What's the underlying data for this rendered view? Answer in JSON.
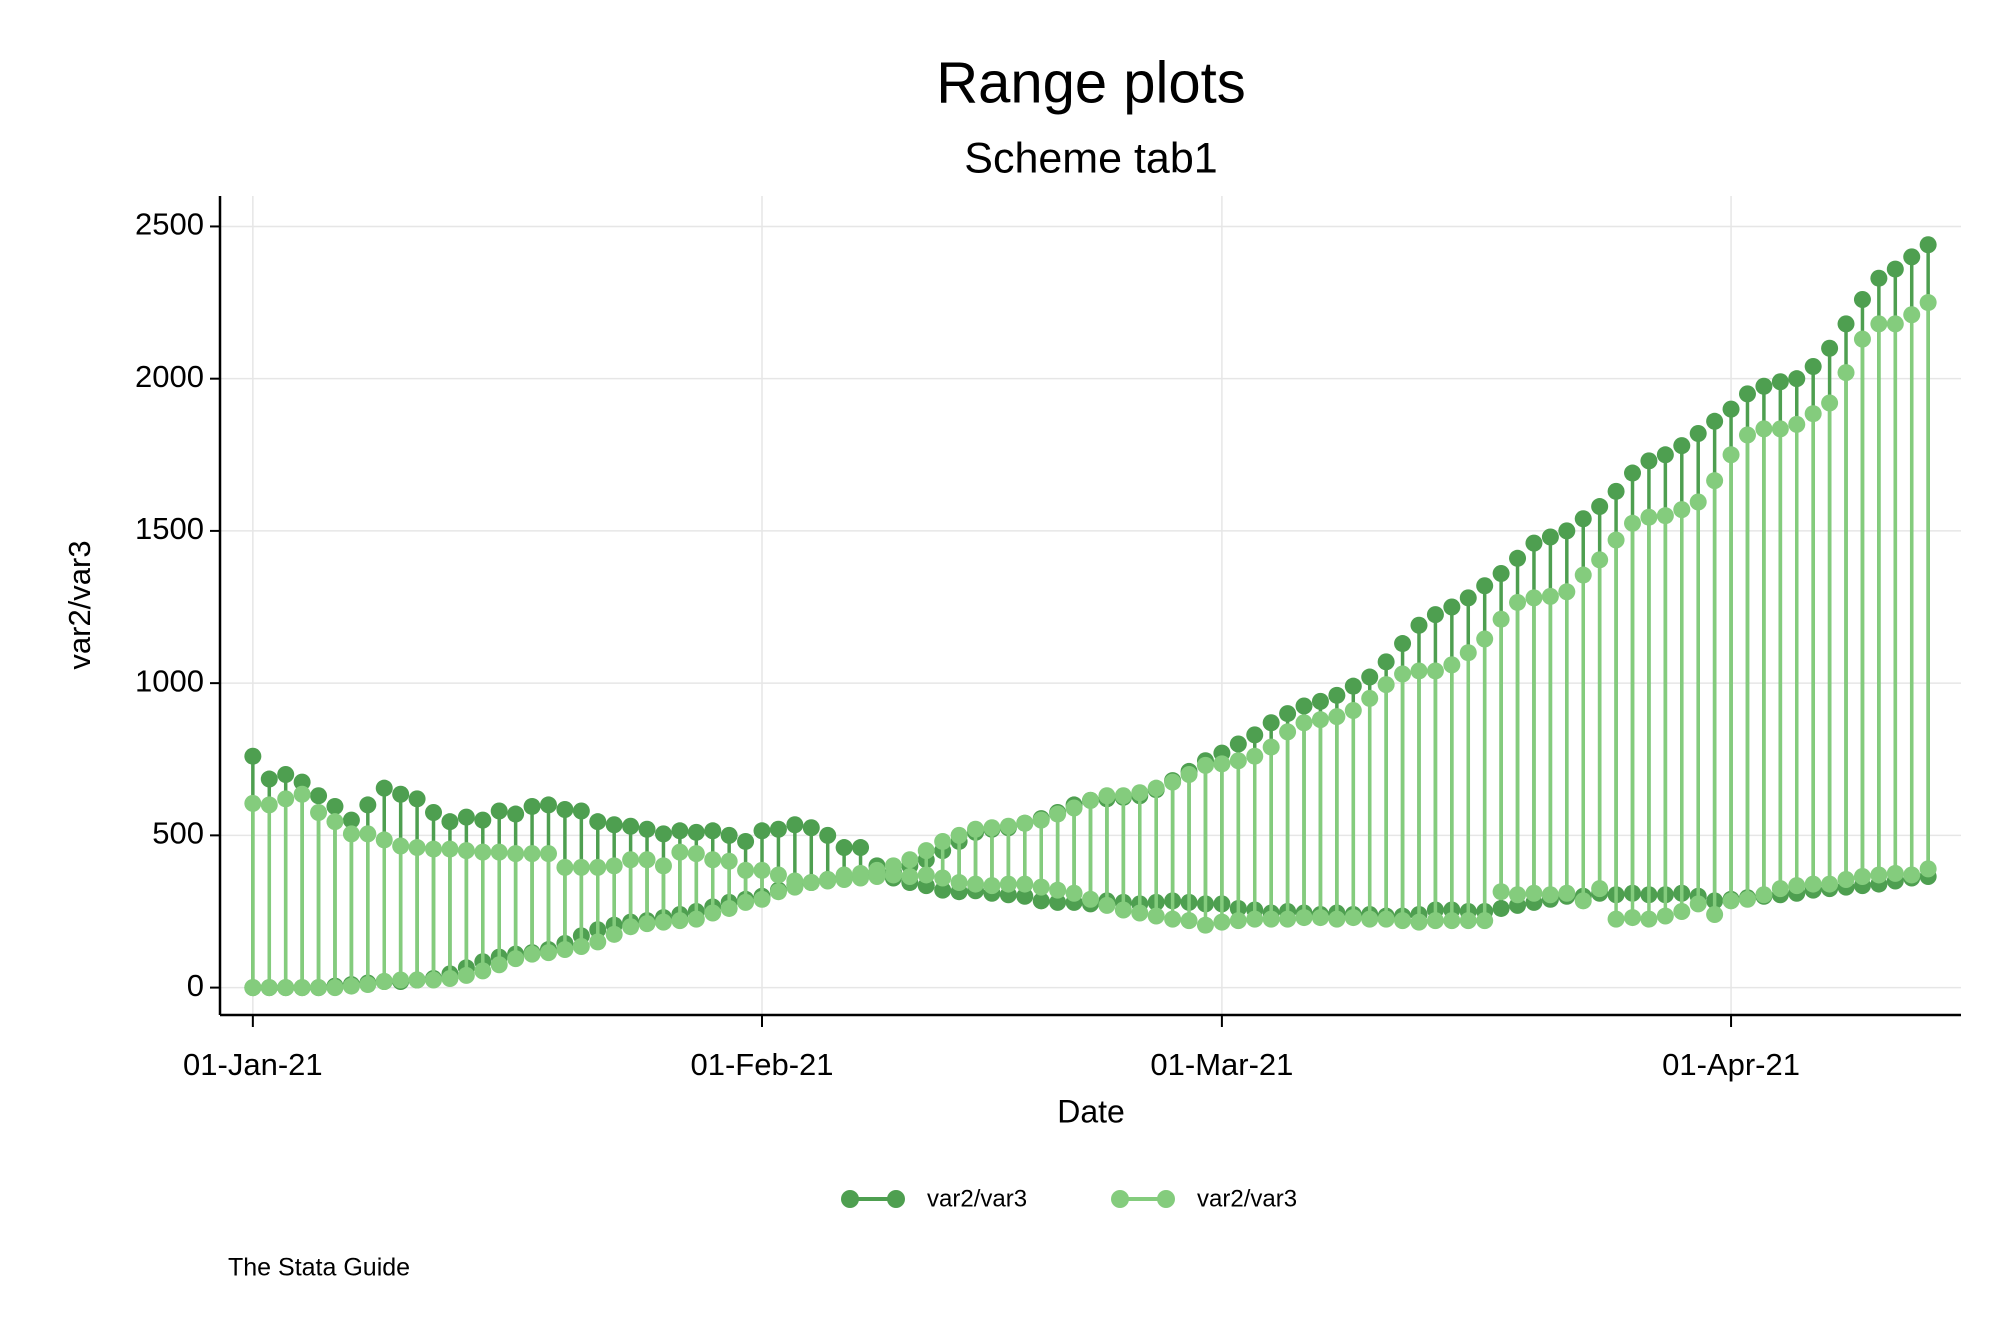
{
  "chart_data": {
    "type": "range",
    "title": "Range plots",
    "subtitle": "Scheme tab1",
    "x_label": "Date",
    "y_label": "var2/var3",
    "caption": "The Stata Guide",
    "grid": true,
    "x": [
      "2021-01-01",
      "2021-01-02",
      "2021-01-03",
      "2021-01-04",
      "2021-01-05",
      "2021-01-06",
      "2021-01-07",
      "2021-01-08",
      "2021-01-09",
      "2021-01-10",
      "2021-01-11",
      "2021-01-12",
      "2021-01-13",
      "2021-01-14",
      "2021-01-15",
      "2021-01-16",
      "2021-01-17",
      "2021-01-18",
      "2021-01-19",
      "2021-01-20",
      "2021-01-21",
      "2021-01-22",
      "2021-01-23",
      "2021-01-24",
      "2021-01-25",
      "2021-01-26",
      "2021-01-27",
      "2021-01-28",
      "2021-01-29",
      "2021-01-30",
      "2021-01-31",
      "2021-02-01",
      "2021-02-02",
      "2021-02-03",
      "2021-02-04",
      "2021-02-05",
      "2021-02-06",
      "2021-02-07",
      "2021-02-08",
      "2021-02-09",
      "2021-02-10",
      "2021-02-11",
      "2021-02-12",
      "2021-02-13",
      "2021-02-14",
      "2021-02-15",
      "2021-02-16",
      "2021-02-17",
      "2021-02-18",
      "2021-02-19",
      "2021-02-20",
      "2021-02-21",
      "2021-02-22",
      "2021-02-23",
      "2021-02-24",
      "2021-02-25",
      "2021-02-26",
      "2021-02-27",
      "2021-02-28",
      "2021-03-01",
      "2021-03-02",
      "2021-03-03",
      "2021-03-04",
      "2021-03-05",
      "2021-03-06",
      "2021-03-07",
      "2021-03-08",
      "2021-03-09",
      "2021-03-10",
      "2021-03-11",
      "2021-03-12",
      "2021-03-13",
      "2021-03-14",
      "2021-03-15",
      "2021-03-16",
      "2021-03-17",
      "2021-03-18",
      "2021-03-19",
      "2021-03-20",
      "2021-03-21",
      "2021-03-22",
      "2021-03-23",
      "2021-03-24",
      "2021-03-25",
      "2021-03-26",
      "2021-03-27",
      "2021-03-28",
      "2021-03-29",
      "2021-03-30",
      "2021-03-31",
      "2021-04-01",
      "2021-04-02",
      "2021-04-03",
      "2021-04-04",
      "2021-04-05",
      "2021-04-06",
      "2021-04-07",
      "2021-04-08",
      "2021-04-09",
      "2021-04-10",
      "2021-04-11",
      "2021-04-12",
      "2021-04-13"
    ],
    "series": [
      {
        "name": "var2/var3",
        "color": "#4e9f50",
        "y_from": [
          760,
          685,
          700,
          675,
          630,
          595,
          550,
          600,
          655,
          635,
          620,
          575,
          545,
          560,
          550,
          580,
          570,
          595,
          600,
          585,
          580,
          545,
          535,
          530,
          520,
          505,
          515,
          510,
          515,
          500,
          480,
          515,
          520,
          535,
          525,
          500,
          460,
          460,
          400,
          360,
          345,
          335,
          320,
          315,
          318,
          310,
          305,
          300,
          285,
          280,
          280,
          275,
          285,
          280,
          275,
          280,
          285,
          280,
          275,
          275,
          260,
          255,
          245,
          250,
          245,
          240,
          245,
          240,
          240,
          235,
          235,
          240,
          255,
          255,
          250,
          250,
          260,
          270,
          280,
          290,
          300,
          300,
          310,
          305,
          310,
          305,
          305,
          310,
          300,
          285,
          290,
          295,
          300,
          305,
          310,
          320,
          325,
          330,
          335,
          340,
          350,
          360,
          365
        ],
        "y_to": [
          0,
          0,
          0,
          0,
          0,
          5,
          10,
          15,
          20,
          20,
          25,
          30,
          45,
          65,
          85,
          100,
          110,
          115,
          125,
          145,
          170,
          190,
          205,
          215,
          220,
          230,
          240,
          250,
          265,
          280,
          290,
          300,
          320,
          335,
          345,
          355,
          365,
          370,
          375,
          380,
          400,
          420,
          450,
          480,
          510,
          520,
          525,
          540,
          555,
          575,
          600,
          615,
          620,
          625,
          630,
          650,
          680,
          710,
          745,
          770,
          800,
          830,
          870,
          900,
          925,
          940,
          960,
          990,
          1020,
          1070,
          1130,
          1190,
          1225,
          1250,
          1280,
          1320,
          1360,
          1410,
          1460,
          1480,
          1500,
          1540,
          1580,
          1630,
          1690,
          1730,
          1750,
          1780,
          1820,
          1860,
          1900,
          1950,
          1975,
          1990,
          2000,
          2040,
          2100,
          2180,
          2260,
          2330,
          2360,
          2400,
          2440
        ]
      },
      {
        "name": "var2/var3",
        "color": "#84cc7d",
        "y_from": [
          605,
          600,
          620,
          635,
          575,
          545,
          505,
          505,
          485,
          465,
          460,
          455,
          455,
          450,
          445,
          445,
          440,
          440,
          440,
          395,
          395,
          395,
          400,
          420,
          420,
          400,
          445,
          440,
          420,
          415,
          385,
          385,
          370,
          350,
          345,
          350,
          355,
          360,
          365,
          370,
          365,
          370,
          360,
          345,
          340,
          335,
          340,
          340,
          330,
          320,
          310,
          290,
          270,
          255,
          245,
          235,
          225,
          220,
          205,
          215,
          220,
          225,
          225,
          225,
          230,
          230,
          225,
          230,
          225,
          225,
          220,
          215,
          220,
          220,
          220,
          220,
          315,
          305,
          310,
          305,
          310,
          285,
          325,
          225,
          230,
          225,
          235,
          250,
          275,
          240,
          285,
          290,
          305,
          325,
          335,
          340,
          340,
          355,
          365,
          370,
          375,
          370,
          390
        ],
        "y_to": [
          0,
          0,
          0,
          0,
          0,
          0,
          5,
          10,
          20,
          25,
          25,
          25,
          30,
          40,
          55,
          75,
          95,
          110,
          115,
          125,
          135,
          150,
          175,
          200,
          210,
          215,
          220,
          225,
          245,
          260,
          280,
          290,
          315,
          330,
          345,
          355,
          370,
          375,
          385,
          400,
          420,
          450,
          480,
          500,
          520,
          525,
          530,
          540,
          550,
          570,
          590,
          615,
          630,
          630,
          640,
          655,
          675,
          700,
          730,
          735,
          745,
          760,
          790,
          840,
          870,
          880,
          890,
          910,
          950,
          995,
          1030,
          1040,
          1040,
          1060,
          1100,
          1145,
          1210,
          1265,
          1280,
          1285,
          1300,
          1355,
          1405,
          1470,
          1525,
          1545,
          1550,
          1570,
          1595,
          1665,
          1750,
          1815,
          1835,
          1835,
          1850,
          1885,
          1920,
          2020,
          2130,
          2180,
          2180,
          2210,
          2250
        ]
      }
    ],
    "xlim": [
      "2020-12-30",
      "2021-04-15"
    ],
    "xticks": [
      {
        "value": "2021-01-01",
        "label": "01-Jan-21"
      },
      {
        "value": "2021-02-01",
        "label": "01-Feb-21"
      },
      {
        "value": "2021-03-01",
        "label": "01-Mar-21"
      },
      {
        "value": "2021-04-01",
        "label": "01-Apr-21"
      }
    ],
    "ylim": [
      -90,
      2600
    ],
    "yticks": [
      0,
      500,
      1000,
      1500,
      2000,
      2500
    ]
  }
}
